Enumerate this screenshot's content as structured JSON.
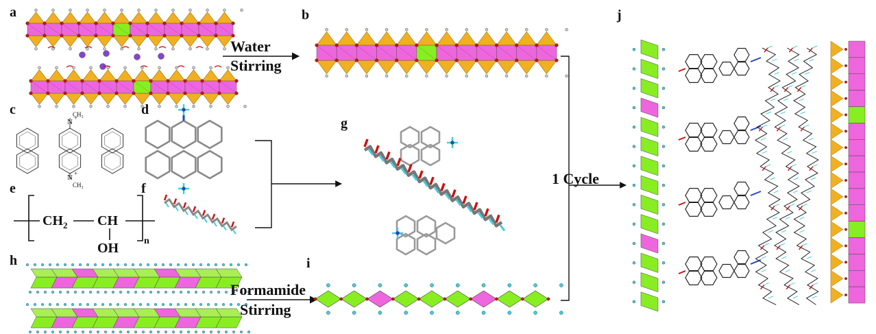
{
  "panels": {
    "a": "a",
    "b": "b",
    "c": "c",
    "d": "d",
    "e": "e",
    "f": "f",
    "g": "g",
    "h": "h",
    "i": "i",
    "j": "j"
  },
  "labels": {
    "water": "Water",
    "stirring_top": "Stirring",
    "formamide": "Formamide",
    "stirring_bottom": "Stirring",
    "cycle": "1 Cycle",
    "methyl_top": "CH₃",
    "methyl_bottom": "CH₃",
    "n_plus_top": "N",
    "n_plus_bottom": "N",
    "plus": "+",
    "ch2": "CH",
    "ch2_sub": "2",
    "ch": "CH",
    "oh": "OH",
    "n_sub": "n"
  },
  "colors": {
    "pink": "#ee66dd",
    "green": "#88ee22",
    "gold": "#f0b020",
    "oxygen": "#cc1111",
    "hydrogen_cyan": "#44ccdd",
    "sodium": "#8844cc",
    "nitrogen": "#2244cc",
    "carbon": "#707070"
  }
}
